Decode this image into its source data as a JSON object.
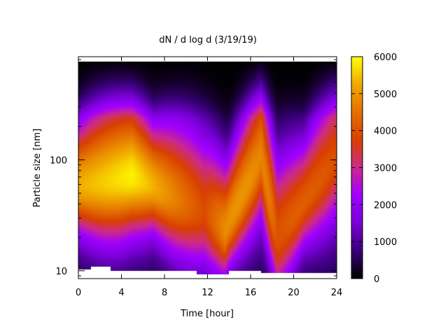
{
  "chart_data": {
    "type": "heatmap",
    "title": "dN / d log d (3/19/19)",
    "xlabel": "Time [hour]",
    "ylabel": "Particle size [nm]",
    "x_range": [
      0,
      24
    ],
    "x_ticks": [
      0,
      4,
      8,
      12,
      16,
      20,
      24
    ],
    "y_scale": "log",
    "y_range": [
      8.5,
      850
    ],
    "y_ticks": [
      10,
      100
    ],
    "colorbar": {
      "range": [
        0,
        6000
      ],
      "ticks": [
        0,
        1000,
        2000,
        3000,
        4000,
        5000,
        6000
      ],
      "palette": [
        "#000000",
        "#3a007a",
        "#7a00d8",
        "#a000ff",
        "#cc2a8a",
        "#d84000",
        "#e47000",
        "#f0a800",
        "#ffff00"
      ]
    },
    "ridge_size_nm": [
      {
        "time_h": 0,
        "size_nm": 60,
        "value": 4500
      },
      {
        "time_h": 5,
        "size_nm": 75,
        "value": 5200
      },
      {
        "time_h": 11.7,
        "size_nm": 35,
        "value": 3000
      },
      {
        "time_h": 13.6,
        "size_nm": 22,
        "value": 4000
      },
      {
        "time_h": 17,
        "size_nm": 120,
        "value": 4300
      },
      {
        "time_h": 18.5,
        "size_nm": 18,
        "value": 3200
      },
      {
        "time_h": 24,
        "size_nm": 120,
        "value": 3500
      }
    ],
    "lower_cutoff_nm": [
      {
        "time_h": 0,
        "size_nm": 10.3
      },
      {
        "time_h": 1.2,
        "size_nm": 10.9
      },
      {
        "time_h": 3,
        "size_nm": 10
      },
      {
        "time_h": 9,
        "size_nm": 10
      },
      {
        "time_h": 11,
        "size_nm": 9.3
      },
      {
        "time_h": 14,
        "size_nm": 10
      },
      {
        "time_h": 17,
        "size_nm": 9.5
      },
      {
        "time_h": 22,
        "size_nm": 9.6
      },
      {
        "time_h": 24,
        "size_nm": 9.5
      }
    ]
  }
}
